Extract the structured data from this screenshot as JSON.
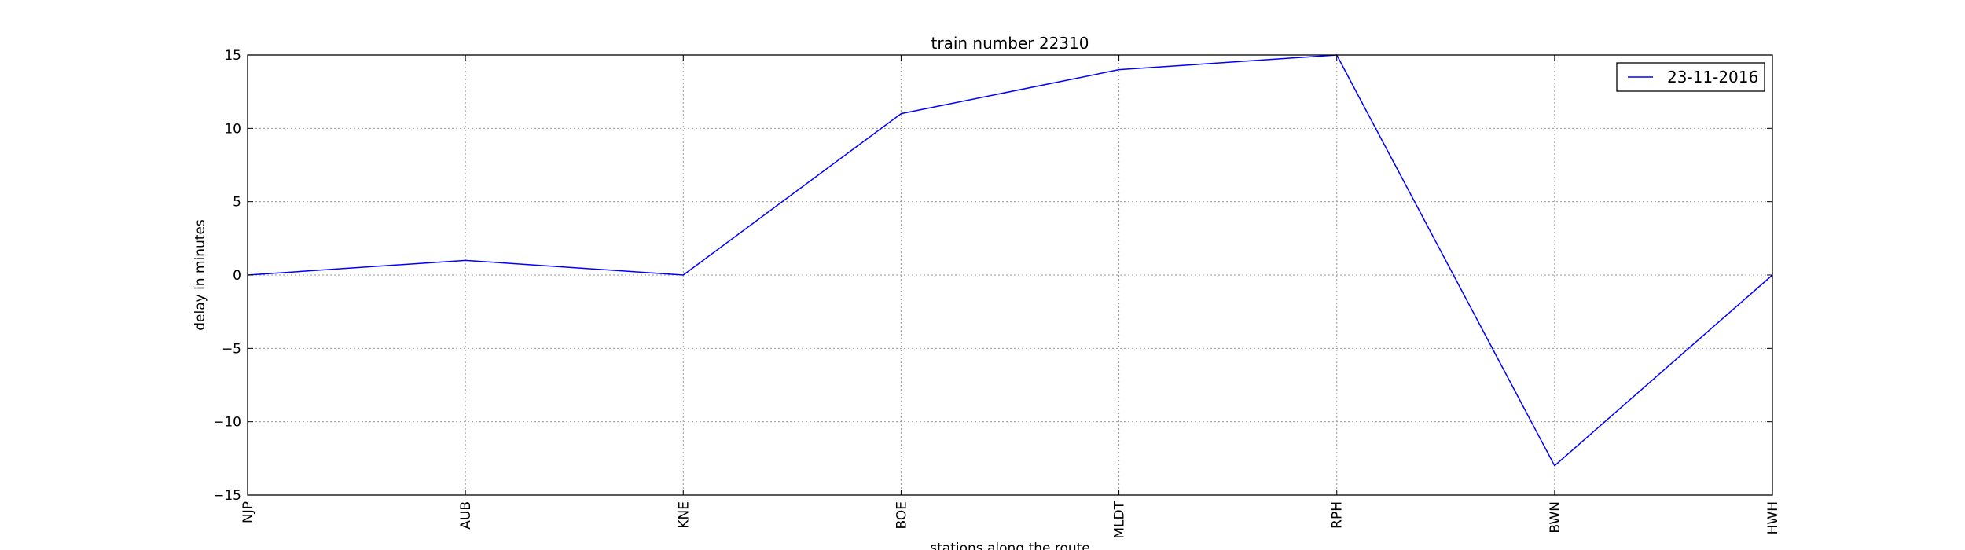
{
  "chart_data": {
    "type": "line",
    "title": "train number 22310",
    "xlabel": "stations along the route",
    "ylabel": "delay in minutes",
    "categories": [
      "NJP",
      "AUB",
      "KNE",
      "BOE",
      "MLDT",
      "RPH",
      "BWN",
      "HWH"
    ],
    "yticks": [
      -15,
      -10,
      -5,
      0,
      5,
      10,
      15
    ],
    "ytick_labels": [
      "−15",
      "−10",
      "−5",
      "0",
      "5",
      "10",
      "15"
    ],
    "ylim": [
      -15,
      15
    ],
    "grid": true,
    "legend_position": "top-right",
    "series": [
      {
        "name": "23-11-2016",
        "color": "#0000ff",
        "values": [
          0,
          1,
          0,
          11,
          14,
          15,
          -13,
          0
        ]
      }
    ]
  }
}
